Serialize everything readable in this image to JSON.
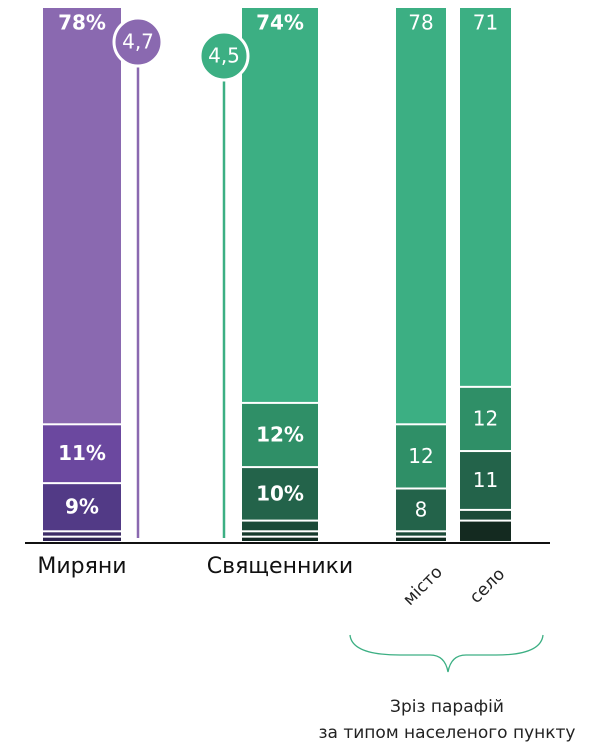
{
  "chart_data": {
    "type": "stacked_bar",
    "ylim": [
      0,
      100
    ],
    "bars": [
      {
        "category": "Миряни",
        "values": [
          78,
          11,
          9,
          1,
          1
        ],
        "value_labels": [
          "78%",
          "11%",
          "9%",
          null,
          null
        ],
        "colors": [
          "#8a69b0",
          "#6b489f",
          "#523a86",
          "#3e2d68",
          "#2c2150"
        ],
        "bold": true
      },
      {
        "category": "Священники",
        "values": [
          74,
          12,
          10,
          2,
          1,
          1
        ],
        "value_labels": [
          "74%",
          "12%",
          "10%",
          null,
          null,
          null
        ],
        "colors": [
          "#3caf83",
          "#2f8f67",
          "#23634a",
          "#1b4a38",
          "#163a2c",
          "#102a20"
        ],
        "bold": true
      },
      {
        "category": "місто",
        "values": [
          78,
          12,
          8,
          1,
          1
        ],
        "value_labels": [
          "78",
          "12",
          "8",
          null,
          null
        ],
        "colors": [
          "#3caf83",
          "#2f8f67",
          "#23634a",
          "#1b4a38",
          "#102a20"
        ],
        "bold": false,
        "rotated": true
      },
      {
        "category": "село",
        "values": [
          71,
          12,
          11,
          2,
          4
        ],
        "value_labels": [
          "71",
          "12",
          "11",
          null,
          null
        ],
        "colors": [
          "#3caf83",
          "#2f8f67",
          "#23634a",
          "#1b4a38",
          "#142a20"
        ],
        "bold": false,
        "rotated": true
      }
    ],
    "markers": [
      {
        "bar": 0,
        "value": 4.7,
        "label": "4,7",
        "color": "#8a69b0"
      },
      {
        "bar": 1,
        "value": 4.5,
        "label": "4,5",
        "color": "#3caf83"
      }
    ],
    "group_label": [
      "Зріз парафій",
      "за типом населеного пункту"
    ]
  }
}
